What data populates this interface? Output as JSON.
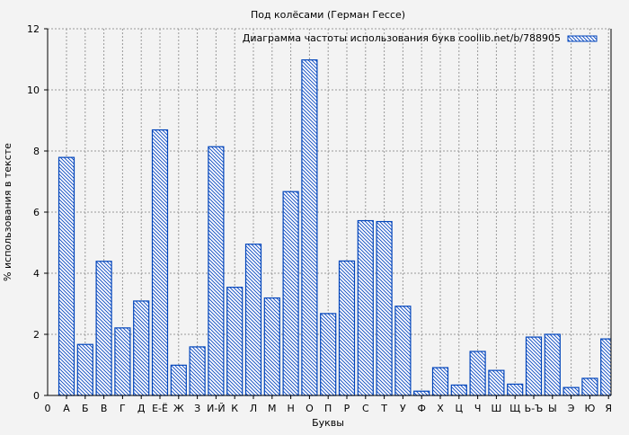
{
  "chart_data": {
    "type": "bar",
    "title": "Под колёсами (Герман Гессе)",
    "xlabel": "Буквы",
    "ylabel": "% использования в тексте",
    "origin_label": "0",
    "legend": {
      "label": "Диаграмма частоты использования букв coollib.net/b/788905",
      "position": "top-right"
    },
    "ylim": [
      0,
      12
    ],
    "yticks": [
      0,
      2,
      4,
      6,
      8,
      10,
      12
    ],
    "grid": true,
    "colors": {
      "bar": "#0044bb",
      "grid": "#999999",
      "background": "#f3f3f3"
    },
    "categories": [
      "А",
      "Б",
      "В",
      "Г",
      "Д",
      "Е-Ё",
      "Ж",
      "З",
      "И-Й",
      "К",
      "Л",
      "М",
      "Н",
      "О",
      "П",
      "Р",
      "С",
      "Т",
      "У",
      "Ф",
      "Х",
      "Ц",
      "Ч",
      "Ш",
      "Щ",
      "Ь-Ъ",
      "Ы",
      "Э",
      "Ю",
      "Я"
    ],
    "values": [
      7.79,
      1.67,
      4.39,
      2.21,
      3.09,
      8.69,
      0.99,
      1.59,
      8.14,
      3.54,
      4.95,
      3.19,
      6.67,
      10.98,
      2.68,
      4.4,
      5.72,
      5.69,
      2.92,
      0.14,
      0.91,
      0.34,
      1.44,
      0.82,
      0.37,
      1.91,
      2.0,
      0.26,
      0.56,
      1.85
    ]
  }
}
